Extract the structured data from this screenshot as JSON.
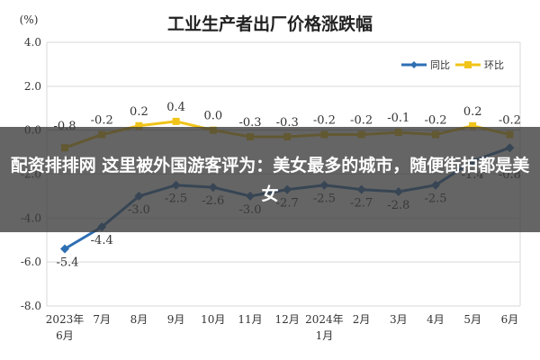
{
  "chart_data": {
    "type": "line",
    "title": "工业生产者出厂价格涨跌幅",
    "ylabel": "(%)",
    "ylim": [
      -8.0,
      4.0
    ],
    "yticks": [
      "4.0",
      "2.0",
      "0.0",
      "-2.0",
      "-4.0",
      "-6.0",
      "-8.0"
    ],
    "categories": [
      [
        "2023年",
        "6月"
      ],
      [
        "7月"
      ],
      [
        "8月"
      ],
      [
        "9月"
      ],
      [
        "10月"
      ],
      [
        "11月"
      ],
      [
        "12月"
      ],
      [
        "2024年",
        "1月"
      ],
      [
        "2月"
      ],
      [
        "3月"
      ],
      [
        "4月"
      ],
      [
        "5月"
      ],
      [
        "6月"
      ]
    ],
    "legend_position": "top-right",
    "grid": true,
    "series": [
      {
        "name": "同比",
        "color": "#2e6fb3",
        "marker": "diamond",
        "values": [
          -5.4,
          -4.4,
          -3.0,
          -2.5,
          -2.6,
          -3.0,
          -2.7,
          -2.5,
          -2.7,
          -2.8,
          -2.5,
          -1.4,
          -0.8
        ],
        "labels": [
          "-5.4",
          "-4.4",
          "-3.0",
          "-2.5",
          "-2.6",
          "-3.0",
          "-2.7",
          "-2.5",
          "-2.7",
          "-2.8",
          "-2.5",
          "-1.4",
          "-0.8"
        ]
      },
      {
        "name": "环比",
        "color": "#f0c419",
        "marker": "square",
        "values": [
          -0.8,
          -0.2,
          0.2,
          0.4,
          0.0,
          -0.3,
          -0.3,
          -0.2,
          -0.2,
          -0.1,
          -0.2,
          0.2,
          -0.2
        ],
        "labels": [
          "-0.8",
          "-0.2",
          "0.2",
          "0.4",
          "0.0",
          "-0.3",
          "-0.3",
          "-0.2",
          "-0.2",
          "-0.1",
          "-0.2",
          "0.2",
          "-0.2"
        ]
      }
    ]
  },
  "overlay": {
    "text": "配资排排网 这里被外国游客评为：美女最多的城市，随便街拍都是美女"
  }
}
